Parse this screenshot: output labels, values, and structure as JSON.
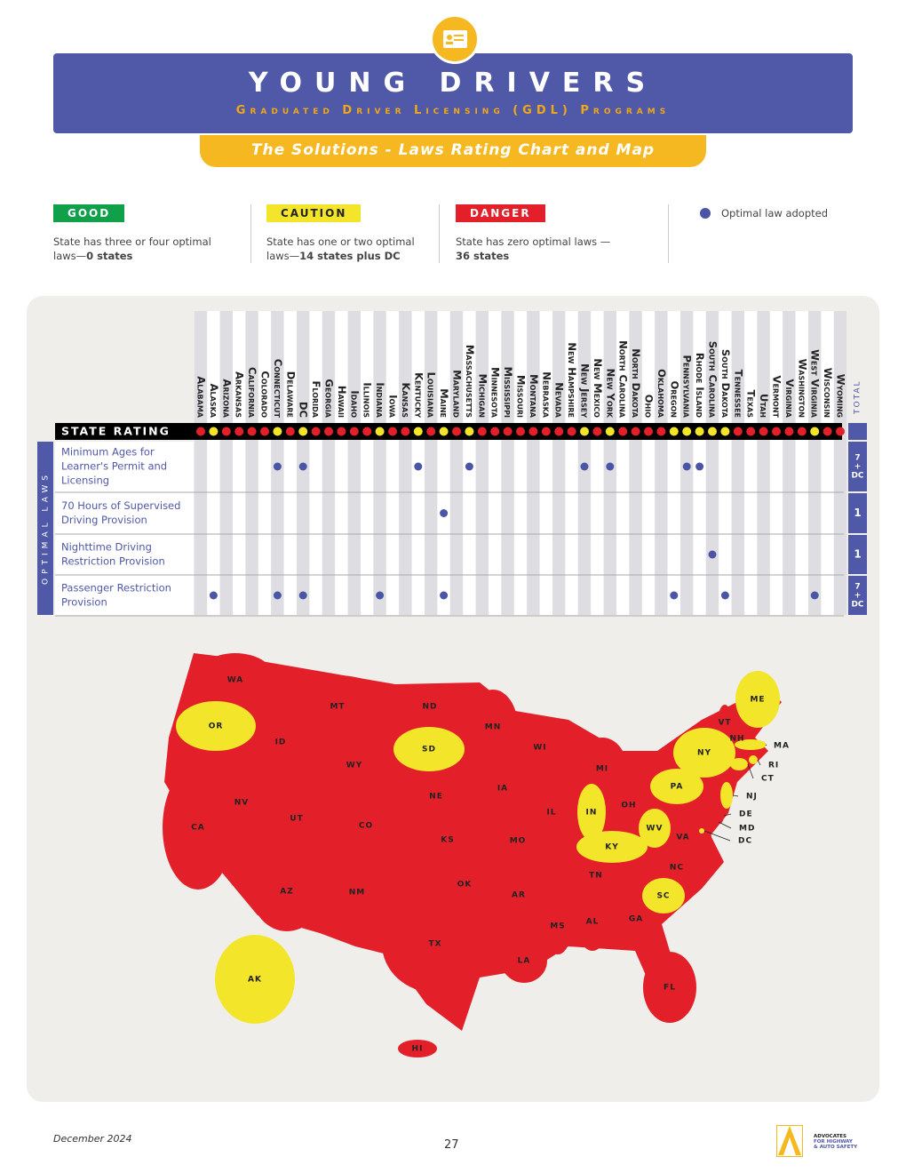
{
  "header": {
    "title": "YOUNG DRIVERS",
    "subtitle": "Graduated Driver Licensing (GDL) Programs",
    "banner": "The Solutions - Laws Rating Chart and Map"
  },
  "legend": [
    {
      "label": "GOOD",
      "color": "#10a04a",
      "text": "State has three or four optimal laws—",
      "bold": "0 states"
    },
    {
      "label": "CAUTION",
      "color": "#f2e52a",
      "text": "State has one or two optimal laws—",
      "bold": "14 states plus DC"
    },
    {
      "label": "DANGER",
      "color": "#e3202a",
      "text": "State has zero optimal laws —",
      "bold": "36 states"
    },
    {
      "label": "Optimal law adopted",
      "color": "#4b55a5"
    }
  ],
  "rating_chart": {
    "rating_label": "STATE RATING",
    "side_label": "OPTIMAL LAWS",
    "total_label": "TOTAL",
    "states": [
      {
        "name": "Alabama",
        "color": "#e3202a"
      },
      {
        "name": "Alaska",
        "color": "#f2e52a"
      },
      {
        "name": "Arizona",
        "color": "#e3202a"
      },
      {
        "name": "Arkansas",
        "color": "#e3202a"
      },
      {
        "name": "California",
        "color": "#e3202a"
      },
      {
        "name": "Colorado",
        "color": "#e3202a"
      },
      {
        "name": "Connecticut",
        "color": "#f2e52a"
      },
      {
        "name": "Delaware",
        "color": "#e3202a"
      },
      {
        "name": "DC",
        "color": "#f2e52a"
      },
      {
        "name": "Florida",
        "color": "#e3202a"
      },
      {
        "name": "Georgia",
        "color": "#e3202a"
      },
      {
        "name": "Hawaii",
        "color": "#e3202a"
      },
      {
        "name": "Idaho",
        "color": "#e3202a"
      },
      {
        "name": "Illinois",
        "color": "#e3202a"
      },
      {
        "name": "Indiana",
        "color": "#f2e52a"
      },
      {
        "name": "Iowa",
        "color": "#e3202a"
      },
      {
        "name": "Kansas",
        "color": "#e3202a"
      },
      {
        "name": "Kentucky",
        "color": "#f2e52a"
      },
      {
        "name": "Louisiana",
        "color": "#e3202a"
      },
      {
        "name": "Maine",
        "color": "#f2e52a"
      },
      {
        "name": "Maryland",
        "color": "#e3202a"
      },
      {
        "name": "Massachusetts",
        "color": "#f2e52a"
      },
      {
        "name": "Michigan",
        "color": "#e3202a"
      },
      {
        "name": "Minnesota",
        "color": "#e3202a"
      },
      {
        "name": "Mississippi",
        "color": "#e3202a"
      },
      {
        "name": "Missouri",
        "color": "#e3202a"
      },
      {
        "name": "Montana",
        "color": "#e3202a"
      },
      {
        "name": "Nebraska",
        "color": "#e3202a"
      },
      {
        "name": "Nevada",
        "color": "#e3202a"
      },
      {
        "name": "New Hampshire",
        "color": "#e3202a"
      },
      {
        "name": "New Jersey",
        "color": "#f2e52a"
      },
      {
        "name": "New Mexico",
        "color": "#e3202a"
      },
      {
        "name": "New York",
        "color": "#f2e52a"
      },
      {
        "name": "North Carolina",
        "color": "#e3202a"
      },
      {
        "name": "North Dakota",
        "color": "#e3202a"
      },
      {
        "name": "Ohio",
        "color": "#e3202a"
      },
      {
        "name": "Oklahoma",
        "color": "#e3202a"
      },
      {
        "name": "Oregon",
        "color": "#f2e52a"
      },
      {
        "name": "Pennsylvania",
        "color": "#f2e52a"
      },
      {
        "name": "Rhode Island",
        "color": "#f2e52a"
      },
      {
        "name": "South Carolina",
        "color": "#f2e52a"
      },
      {
        "name": "South Dakota",
        "color": "#f2e52a"
      },
      {
        "name": "Tennessee",
        "color": "#e3202a"
      },
      {
        "name": "Texas",
        "color": "#e3202a"
      },
      {
        "name": "Utah",
        "color": "#e3202a"
      },
      {
        "name": "Vermont",
        "color": "#e3202a"
      },
      {
        "name": "Virginia",
        "color": "#e3202a"
      },
      {
        "name": "Washington",
        "color": "#e3202a"
      },
      {
        "name": "West Virginia",
        "color": "#f2e52a"
      },
      {
        "name": "Wisconsin",
        "color": "#e3202a"
      },
      {
        "name": "Wyoming",
        "color": "#e3202a"
      }
    ],
    "laws": [
      {
        "label": [
          "Minimum Ages for",
          "Learner's Permit and",
          "Licensing"
        ],
        "states": [
          "Connecticut",
          "DC",
          "Kentucky",
          "Massachusetts",
          "New Jersey",
          "New York",
          "Pennsylvania",
          "Rhode Island"
        ],
        "total": [
          "7",
          "+",
          "DC"
        ]
      },
      {
        "label": [
          "70 Hours of Supervised",
          "Driving Provision"
        ],
        "states": [
          "Maine"
        ],
        "total": [
          "1"
        ]
      },
      {
        "label": [
          "Nighttime Driving",
          "Restriction Provision"
        ],
        "states": [
          "South Carolina"
        ],
        "total": [
          "1"
        ]
      },
      {
        "label": [
          "Passenger Restriction",
          "Provision"
        ],
        "states": [
          "Alaska",
          "Connecticut",
          "DC",
          "Indiana",
          "Maine",
          "Oregon",
          "South Dakota",
          "West Virginia"
        ],
        "total": [
          "7",
          "+",
          "DC"
        ]
      }
    ]
  },
  "map": {
    "states": [
      {
        "abbr": "WA",
        "color": "#e3202a"
      },
      {
        "abbr": "OR",
        "color": "#f2e52a"
      },
      {
        "abbr": "CA",
        "color": "#e3202a"
      },
      {
        "abbr": "NV",
        "color": "#e3202a"
      },
      {
        "abbr": "ID",
        "color": "#e3202a"
      },
      {
        "abbr": "MT",
        "color": "#e3202a"
      },
      {
        "abbr": "WY",
        "color": "#e3202a"
      },
      {
        "abbr": "UT",
        "color": "#e3202a"
      },
      {
        "abbr": "AZ",
        "color": "#e3202a"
      },
      {
        "abbr": "CO",
        "color": "#e3202a"
      },
      {
        "abbr": "NM",
        "color": "#e3202a"
      },
      {
        "abbr": "ND",
        "color": "#e3202a"
      },
      {
        "abbr": "SD",
        "color": "#f2e52a"
      },
      {
        "abbr": "NE",
        "color": "#e3202a"
      },
      {
        "abbr": "KS",
        "color": "#e3202a"
      },
      {
        "abbr": "OK",
        "color": "#e3202a"
      },
      {
        "abbr": "TX",
        "color": "#e3202a"
      },
      {
        "abbr": "MN",
        "color": "#e3202a"
      },
      {
        "abbr": "IA",
        "color": "#e3202a"
      },
      {
        "abbr": "MO",
        "color": "#e3202a"
      },
      {
        "abbr": "AR",
        "color": "#e3202a"
      },
      {
        "abbr": "LA",
        "color": "#e3202a"
      },
      {
        "abbr": "WI",
        "color": "#e3202a"
      },
      {
        "abbr": "IL",
        "color": "#e3202a"
      },
      {
        "abbr": "MS",
        "color": "#e3202a"
      },
      {
        "abbr": "MI",
        "color": "#e3202a"
      },
      {
        "abbr": "IN",
        "color": "#f2e52a"
      },
      {
        "abbr": "KY",
        "color": "#f2e52a"
      },
      {
        "abbr": "TN",
        "color": "#e3202a"
      },
      {
        "abbr": "AL",
        "color": "#e3202a"
      },
      {
        "abbr": "OH",
        "color": "#e3202a"
      },
      {
        "abbr": "GA",
        "color": "#e3202a"
      },
      {
        "abbr": "FL",
        "color": "#e3202a"
      },
      {
        "abbr": "SC",
        "color": "#f2e52a"
      },
      {
        "abbr": "NC",
        "color": "#e3202a"
      },
      {
        "abbr": "VA",
        "color": "#e3202a"
      },
      {
        "abbr": "WV",
        "color": "#f2e52a"
      },
      {
        "abbr": "PA",
        "color": "#f2e52a"
      },
      {
        "abbr": "NY",
        "color": "#f2e52a"
      },
      {
        "abbr": "ME",
        "color": "#f2e52a"
      },
      {
        "abbr": "VT",
        "color": "#e3202a"
      },
      {
        "abbr": "NH",
        "color": "#e3202a"
      },
      {
        "abbr": "MA",
        "color": "#f2e52a"
      },
      {
        "abbr": "RI",
        "color": "#f2e52a"
      },
      {
        "abbr": "CT",
        "color": "#f2e52a"
      },
      {
        "abbr": "NJ",
        "color": "#f2e52a"
      },
      {
        "abbr": "DE",
        "color": "#e3202a"
      },
      {
        "abbr": "MD",
        "color": "#e3202a"
      },
      {
        "abbr": "DC",
        "color": "#f2e52a"
      },
      {
        "abbr": "AK",
        "color": "#f2e52a"
      },
      {
        "abbr": "HI",
        "color": "#e3202a"
      }
    ]
  },
  "footer": {
    "date": "December 2024",
    "page": "27",
    "logo": [
      "ADVOCATES",
      "FOR HIGHWAY",
      "& AUTO SAFETY"
    ]
  }
}
